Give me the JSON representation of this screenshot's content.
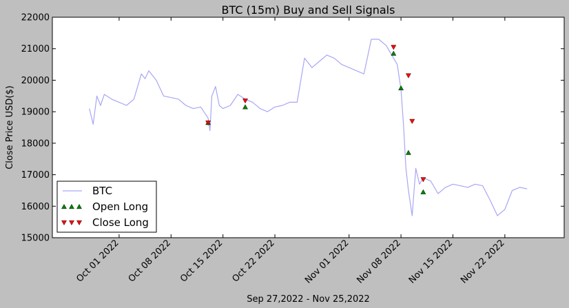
{
  "chart_data": {
    "type": "line",
    "title": "BTC (15m) Buy and Sell Signals",
    "xlabel": "Sep 27,2022 - Nov 25,2022",
    "ylabel": "Close Price USD($)",
    "ylim": [
      15000,
      22000
    ],
    "xlim": [
      "2022-09-22",
      "2022-11-30"
    ],
    "x_ticks": [
      "Oct 01 2022",
      "Oct 08 2022",
      "Oct 15 2022",
      "Oct 22 2022",
      "Nov 01 2022",
      "Nov 08 2022",
      "Nov 15 2022",
      "Nov 22 2022"
    ],
    "x_tick_dates": [
      "2022-10-01",
      "2022-10-08",
      "2022-10-15",
      "2022-10-22",
      "2022-11-01",
      "2022-11-08",
      "2022-11-15",
      "2022-11-22"
    ],
    "y_ticks": [
      15000,
      16000,
      17000,
      18000,
      19000,
      20000,
      21000,
      22000
    ],
    "grid": false,
    "legend": {
      "placement": "bottom-left"
    },
    "colors": {
      "price": "#a6a6f5",
      "buy": "#008000",
      "sell": "#ff0000"
    },
    "series": [
      {
        "name": "BTC",
        "kind": "line",
        "x": [
          "2022-09-27",
          "2022-09-27 12:00",
          "2022-09-28",
          "2022-09-28 12:00",
          "2022-09-29",
          "2022-09-30",
          "2022-10-01",
          "2022-10-02",
          "2022-10-03",
          "2022-10-04",
          "2022-10-04 12:00",
          "2022-10-05",
          "2022-10-06",
          "2022-10-07",
          "2022-10-08",
          "2022-10-09",
          "2022-10-10",
          "2022-10-11",
          "2022-10-12",
          "2022-10-13",
          "2022-10-13 06:00",
          "2022-10-13 12:00",
          "2022-10-14",
          "2022-10-14 12:00",
          "2022-10-15",
          "2022-10-16",
          "2022-10-17",
          "2022-10-18",
          "2022-10-19",
          "2022-10-20",
          "2022-10-21",
          "2022-10-22",
          "2022-10-23",
          "2022-10-24",
          "2022-10-25",
          "2022-10-25 12:00",
          "2022-10-26",
          "2022-10-27",
          "2022-10-28",
          "2022-10-29",
          "2022-10-30",
          "2022-10-31",
          "2022-11-01",
          "2022-11-02",
          "2022-11-03",
          "2022-11-04",
          "2022-11-05",
          "2022-11-06",
          "2022-11-07",
          "2022-11-07 12:00",
          "2022-11-08",
          "2022-11-08 08:00",
          "2022-11-08 16:00",
          "2022-11-09",
          "2022-11-09 12:00",
          "2022-11-10",
          "2022-11-10 12:00",
          "2022-11-11",
          "2022-11-12",
          "2022-11-13",
          "2022-11-14",
          "2022-11-15",
          "2022-11-16",
          "2022-11-17",
          "2022-11-18",
          "2022-11-19",
          "2022-11-20",
          "2022-11-21",
          "2022-11-22",
          "2022-11-23",
          "2022-11-24",
          "2022-11-25"
        ],
        "y": [
          19100,
          18600,
          19500,
          19200,
          19550,
          19400,
          19300,
          19200,
          19400,
          20200,
          20050,
          20300,
          20000,
          19500,
          19450,
          19400,
          19200,
          19100,
          19150,
          18800,
          18400,
          19500,
          19800,
          19200,
          19100,
          19200,
          19550,
          19400,
          19300,
          19100,
          19000,
          19150,
          19200,
          19300,
          19300,
          20000,
          20700,
          20400,
          20600,
          20800,
          20700,
          20500,
          20400,
          20300,
          20200,
          21300,
          21300,
          21100,
          20700,
          20500,
          19700,
          18600,
          17200,
          16500,
          15700,
          17200,
          16700,
          16900,
          16800,
          16400,
          16600,
          16700,
          16650,
          16600,
          16700,
          16650,
          16200,
          15700,
          15900,
          16500,
          16600,
          16550
        ]
      },
      {
        "name": "Open Long",
        "kind": "marker",
        "x": [
          "2022-10-13",
          "2022-10-18",
          "2022-11-07",
          "2022-11-08",
          "2022-11-09",
          "2022-11-11"
        ],
        "y": [
          18650,
          19150,
          20850,
          19750,
          17700,
          16450
        ]
      },
      {
        "name": "Close Long",
        "kind": "marker",
        "x": [
          "2022-10-13",
          "2022-10-18",
          "2022-11-07",
          "2022-11-09",
          "2022-11-09 12:00",
          "2022-11-11"
        ],
        "y": [
          18650,
          19350,
          21050,
          20150,
          18700,
          16850
        ]
      }
    ]
  }
}
